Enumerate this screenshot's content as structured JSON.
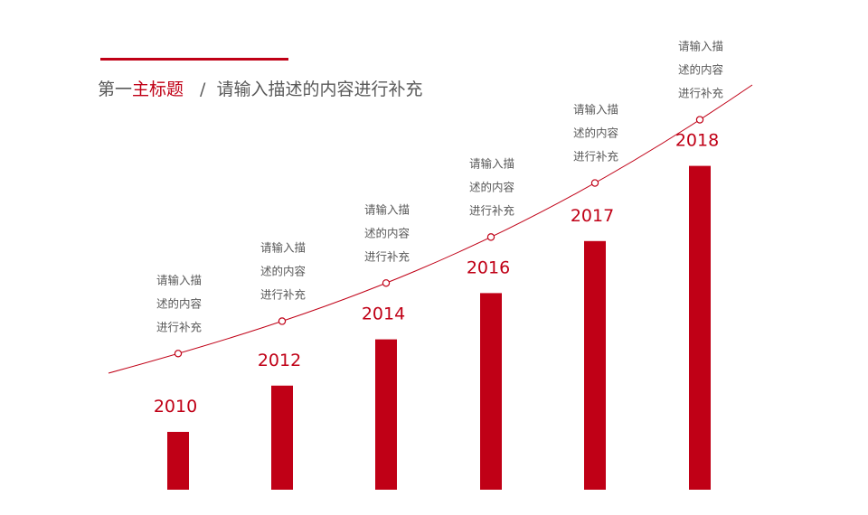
{
  "header": {
    "title_prefix": "第一",
    "title_main": "主标题",
    "separator": "/",
    "subtitle": "请输入描述的内容进行补充"
  },
  "colors": {
    "accent": "#c00016",
    "text": "#595959"
  },
  "chart_data": {
    "type": "bar",
    "categories": [
      "2010",
      "2012",
      "2014",
      "2016",
      "2017",
      "2018"
    ],
    "values": [
      1.0,
      1.8,
      2.6,
      3.4,
      4.3,
      5.6
    ],
    "ylim": [
      0,
      6
    ],
    "grid": false,
    "annotations": [
      [
        "请输入描",
        "述的内容",
        "进行补充"
      ],
      [
        "请输入描",
        "述的内容",
        "进行补充"
      ],
      [
        "请输入描",
        "述的内容",
        "进行补充"
      ],
      [
        "请输入描",
        "述的内容",
        "进行补充"
      ],
      [
        "请输入描",
        "述的内容",
        "进行补充"
      ],
      [
        "请输入描",
        "述的内容",
        "进行补充"
      ]
    ]
  }
}
